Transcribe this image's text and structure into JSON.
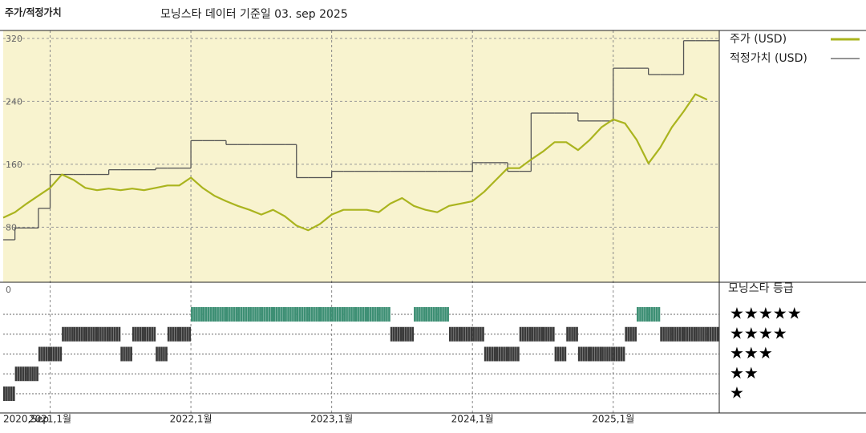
{
  "chart_data": [
    {
      "type": "line",
      "title": "주가/적정가치",
      "subtitle": "모닝스타 데이터 기준일 03. sep 2025",
      "x": [
        "2020-09",
        "2020-10",
        "2020-11",
        "2020-12",
        "2021-01",
        "2021-02",
        "2021-03",
        "2021-04",
        "2021-05",
        "2021-06",
        "2021-07",
        "2021-08",
        "2021-09",
        "2021-10",
        "2021-11",
        "2021-12",
        "2022-01",
        "2022-02",
        "2022-03",
        "2022-04",
        "2022-05",
        "2022-06",
        "2022-07",
        "2022-08",
        "2022-09",
        "2022-10",
        "2022-11",
        "2022-12",
        "2023-01",
        "2023-02",
        "2023-03",
        "2023-04",
        "2023-05",
        "2023-06",
        "2023-07",
        "2023-08",
        "2023-09",
        "2023-10",
        "2023-11",
        "2023-12",
        "2024-01",
        "2024-02",
        "2024-03",
        "2024-04",
        "2024-05",
        "2024-06",
        "2024-07",
        "2024-08",
        "2024-09",
        "2024-10",
        "2024-11",
        "2024-12",
        "2025-01",
        "2025-02",
        "2025-03",
        "2025-04",
        "2025-05",
        "2025-06",
        "2025-07",
        "2025-08",
        "2025-09"
      ],
      "series": [
        {
          "name": "주가 (USD)",
          "color": "#aab41e",
          "style": "line",
          "values": [
            92,
            99,
            110,
            120,
            130,
            147,
            140,
            130,
            127,
            129,
            127,
            129,
            127,
            130,
            133,
            133,
            143,
            130,
            120,
            113,
            107,
            102,
            96,
            102,
            94,
            82,
            76,
            84,
            96,
            102,
            102,
            102,
            99,
            110,
            117,
            107,
            102,
            99,
            107,
            110,
            113,
            125,
            140,
            155,
            155,
            166,
            176,
            188,
            188,
            178,
            191,
            207,
            217,
            212,
            191,
            161,
            181,
            207,
            227,
            249,
            242
          ]
        },
        {
          "name": "적정가치 (USD)",
          "color": "#555555",
          "style": "step",
          "values": [
            64,
            79,
            79,
            104,
            147,
            147,
            147,
            147,
            147,
            153,
            153,
            153,
            153,
            155,
            155,
            155,
            190,
            190,
            190,
            185,
            185,
            185,
            185,
            185,
            185,
            143,
            143,
            143,
            151,
            151,
            151,
            151,
            151,
            151,
            151,
            151,
            151,
            151,
            151,
            151,
            162,
            162,
            162,
            151,
            151,
            225,
            225,
            225,
            225,
            215,
            215,
            215,
            282,
            282,
            282,
            274,
            274,
            274,
            317,
            317,
            317
          ]
        }
      ],
      "ylim": [
        10,
        330
      ],
      "yticks": [
        80,
        160,
        240,
        320
      ],
      "xticks": [
        {
          "value": "2020-09",
          "label": "2020,Sep"
        },
        {
          "value": "2021-01",
          "label": "2021,1월"
        },
        {
          "value": "2022-01",
          "label": "2022,1월"
        },
        {
          "value": "2023-01",
          "label": "2023,1월"
        },
        {
          "value": "2024-01",
          "label": "2024,1월"
        },
        {
          "value": "2025-01",
          "label": "2025,1월"
        }
      ],
      "grid": true
    },
    {
      "type": "rating",
      "title": "모닝스타 등급",
      "axis_label": "0",
      "levels": [
        1,
        2,
        3,
        4,
        5
      ],
      "level_labels": [
        "★",
        "★★",
        "★★★",
        "★★★★",
        "★★★★★"
      ],
      "level_colors": [
        "#3a3a3a",
        "#3a3a3a",
        "#3a3a3a",
        "#3a3a3a",
        "#3d8f74"
      ],
      "values": [
        1,
        2,
        2,
        3,
        3,
        4,
        4,
        4,
        4,
        4,
        3,
        4,
        4,
        3,
        4,
        4,
        5,
        5,
        5,
        5,
        5,
        5,
        5,
        5,
        5,
        5,
        5,
        5,
        5,
        5,
        5,
        5,
        5,
        4,
        4,
        5,
        5,
        5,
        4,
        4,
        4,
        3,
        3,
        3,
        4,
        4,
        4,
        3,
        4,
        3,
        3,
        3,
        3,
        4,
        5,
        5,
        4,
        4,
        4,
        4,
        4
      ]
    }
  ]
}
